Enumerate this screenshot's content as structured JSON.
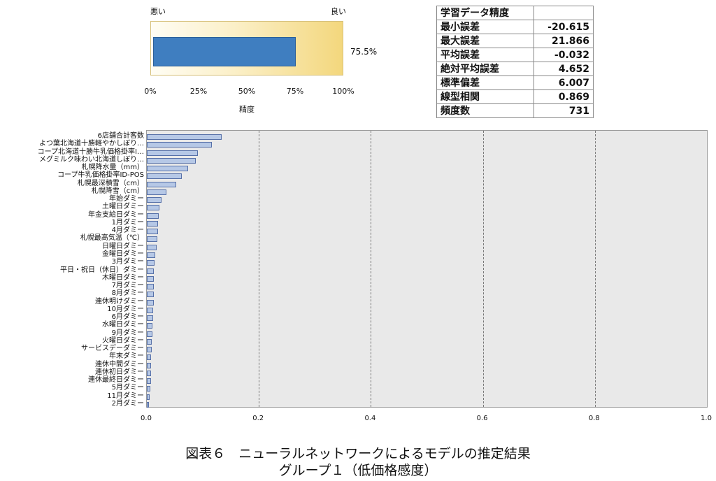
{
  "gauge": {
    "left_label": "悪い",
    "right_label": "良い",
    "value_pct": 75.5,
    "value_label": "75.5%",
    "ticks": [
      "0%",
      "25%",
      "50%",
      "75%",
      "100%"
    ],
    "xlabel": "精度",
    "colors": {
      "fill": "#3f7ec0",
      "background_end": "#f3d77d"
    }
  },
  "stats": {
    "title": "学習データ精度",
    "rows": [
      {
        "label": "最小誤差",
        "value": "-20.615"
      },
      {
        "label": "最大誤差",
        "value": "21.866"
      },
      {
        "label": "平均誤差",
        "value": "-0.032"
      },
      {
        "label": "絶対平均誤差",
        "value": "4.652"
      },
      {
        "label": "標準偏差",
        "value": "6.007"
      },
      {
        "label": "線型相関",
        "value": "0.869"
      },
      {
        "label": "頻度数",
        "value": "731"
      }
    ]
  },
  "chart_data": {
    "type": "bar",
    "orientation": "horizontal",
    "xlim": [
      0,
      1.0
    ],
    "x_ticks": [
      "0.0",
      "0.2",
      "0.4",
      "0.6",
      "0.8",
      "1.0"
    ],
    "grid": "vertical dashed",
    "colors": {
      "bar": "#b6c8e6",
      "bar_edge": "#5670a8",
      "plot_bg": "#e9e9e9"
    },
    "categories": [
      "6店舗合計客数",
      "よつ葉北海道十勝軽やかしぼり…",
      "コープ北海道十勝牛乳価格掛率I…",
      "メグミルク味わい北海道しぼり…",
      "札幌降水量（mm）",
      "コープ牛乳価格掛率ID-POS",
      "札幌最深積雪（cm）",
      "札幌降雪（cm）",
      "年始ダミー",
      "土曜日ダミー",
      "年金支給日ダミー",
      "1月ダミー",
      "4月ダミー",
      "札幌最高気温（℃）",
      "日曜日ダミー",
      "金曜日ダミー",
      "3月ダミー",
      "平日・祝日（休日）ダミー",
      "木曜日ダミー",
      "7月ダミー",
      "8月ダミー",
      "連休明けダミー",
      "10月ダミー",
      "6月ダミー",
      "水曜日ダミー",
      "9月ダミー",
      "火曜日ダミー",
      "サービスデーダミー",
      "年末ダミー",
      "連休中間ダミー",
      "連休初日ダミー",
      "連休最終日ダミー",
      "5月ダミー",
      "11月ダミー",
      "2月ダミー"
    ],
    "values": [
      0.133,
      0.116,
      0.091,
      0.088,
      0.074,
      0.062,
      0.053,
      0.035,
      0.026,
      0.023,
      0.021,
      0.02,
      0.02,
      0.019,
      0.018,
      0.015,
      0.014,
      0.013,
      0.013,
      0.012,
      0.012,
      0.012,
      0.011,
      0.011,
      0.01,
      0.01,
      0.009,
      0.009,
      0.008,
      0.008,
      0.007,
      0.007,
      0.006,
      0.005,
      0.004
    ]
  },
  "caption": {
    "line1": "図表６　ニューラルネットワークによるモデルの推定結果",
    "line2": "グループ１（低価格感度）"
  }
}
